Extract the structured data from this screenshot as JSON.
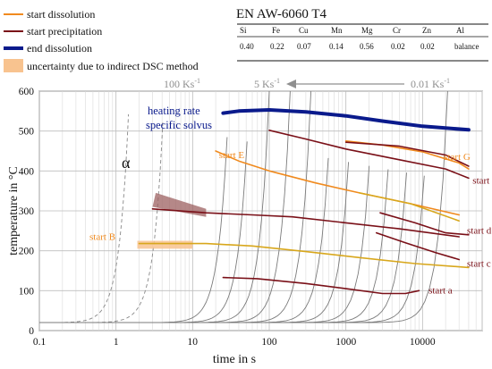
{
  "chart_data": {
    "type": "line",
    "title": "EN AW-6060 T4",
    "xlabel": "time in s",
    "ylabel": "temperature in °C",
    "xscale": "log",
    "xlim": [
      0.1,
      60000
    ],
    "ylim": [
      0,
      600
    ],
    "x_ticks": [
      {
        "value": 0.1,
        "label": "0.1"
      },
      {
        "value": 1,
        "label": "1"
      },
      {
        "value": 10,
        "label": "10"
      },
      {
        "value": 100,
        "label": "100"
      },
      {
        "value": 1000,
        "label": "1000"
      },
      {
        "value": 10000,
        "label": "10000"
      }
    ],
    "y_ticks": [
      0,
      100,
      200,
      300,
      400,
      500,
      600
    ],
    "grid": true,
    "legend": {
      "position": "top-left",
      "entries": [
        {
          "label": "start dissolution",
          "color": "#f08a1e",
          "kind": "line"
        },
        {
          "label": "start precipitation",
          "color": "#7a1018",
          "kind": "line"
        },
        {
          "label": "end dissolution",
          "color": "#0a1a8c",
          "kind": "thick-line"
        },
        {
          "label": "uncertainty due to indirect DSC method",
          "color": "#f8c38f",
          "kind": "box"
        }
      ]
    },
    "composition_table": {
      "headers": [
        "Si",
        "Fe",
        "Cu",
        "Mn",
        "Mg",
        "Cr",
        "Zn",
        "Al"
      ],
      "values": [
        "0.40",
        "0.22",
        "0.07",
        "0.14",
        "0.56",
        "0.02",
        "0.02",
        "balance"
      ]
    },
    "rate_labels": {
      "fast": {
        "text": "100 Ks",
        "exp": "-1"
      },
      "mid": {
        "text": "5 Ks",
        "exp": "-1"
      },
      "slow": {
        "text": "0.01 Ks",
        "exp": "-1"
      }
    },
    "phase_label": "α",
    "solvus_label": [
      "heating rate",
      "specific solvus"
    ],
    "series": [
      {
        "name": "end dissolution",
        "color": "#0a1a8c",
        "width": 4,
        "points": [
          [
            25,
            545
          ],
          [
            40,
            550
          ],
          [
            100,
            553
          ],
          [
            300,
            548
          ],
          [
            1000,
            538
          ],
          [
            3000,
            525
          ],
          [
            10000,
            512
          ],
          [
            40000,
            503
          ]
        ]
      },
      {
        "name": "start E (dissolution)",
        "color": "#f08a1e",
        "width": 1.6,
        "points": [
          [
            20,
            450
          ],
          [
            40,
            425
          ],
          [
            100,
            400
          ],
          [
            400,
            370
          ],
          [
            1500,
            345
          ],
          [
            7000,
            318
          ],
          [
            30000,
            290
          ]
        ]
      },
      {
        "name": "start E (dissolution, yellow)",
        "color": "#d8a71c",
        "width": 1.6,
        "points": [
          [
            1500,
            345
          ],
          [
            7000,
            318
          ],
          [
            30000,
            275
          ]
        ]
      },
      {
        "name": "start G",
        "color": "#f08a1e",
        "width": 1.6,
        "points": [
          [
            1000,
            475
          ],
          [
            3000,
            465
          ],
          [
            10000,
            448
          ],
          [
            30000,
            420
          ],
          [
            40000,
            405
          ]
        ]
      },
      {
        "name": "start f",
        "color": "#7a1018",
        "width": 1.6,
        "points": [
          [
            100,
            502
          ],
          [
            300,
            480
          ],
          [
            1000,
            455
          ],
          [
            5000,
            428
          ],
          [
            20000,
            405
          ],
          [
            40000,
            382
          ]
        ]
      },
      {
        "name": "start f (upper)",
        "color": "#7a1018",
        "width": 1.6,
        "points": [
          [
            1000,
            472
          ],
          [
            5000,
            462
          ],
          [
            20000,
            440
          ],
          [
            40000,
            412
          ]
        ]
      },
      {
        "name": "start d",
        "color": "#7a1018",
        "width": 1.6,
        "points": [
          [
            3,
            305
          ],
          [
            15,
            295
          ],
          [
            60,
            290
          ],
          [
            200,
            285
          ],
          [
            1000,
            270
          ],
          [
            5000,
            255
          ],
          [
            30000,
            235
          ]
        ]
      },
      {
        "name": "start d (right)",
        "color": "#7a1018",
        "width": 1.6,
        "points": [
          [
            2800,
            295
          ],
          [
            8000,
            270
          ],
          [
            20000,
            245
          ],
          [
            40000,
            240
          ]
        ]
      },
      {
        "name": "start B",
        "color": "#d8a71c",
        "width": 1.6,
        "points": [
          [
            2,
            218
          ],
          [
            15,
            218
          ],
          [
            60,
            212
          ],
          [
            300,
            198
          ],
          [
            1500,
            183
          ],
          [
            8000,
            168
          ],
          [
            40000,
            158
          ]
        ]
      },
      {
        "name": "start c",
        "color": "#7a1018",
        "width": 1.6,
        "points": [
          [
            2500,
            245
          ],
          [
            6000,
            220
          ],
          [
            15000,
            195
          ],
          [
            30000,
            178
          ]
        ]
      },
      {
        "name": "start a",
        "color": "#7a1018",
        "width": 1.6,
        "points": [
          [
            25,
            133
          ],
          [
            70,
            130
          ],
          [
            300,
            118
          ],
          [
            1000,
            105
          ],
          [
            3000,
            93
          ],
          [
            6000,
            93
          ],
          [
            9000,
            100
          ]
        ]
      }
    ],
    "annotations": [
      {
        "text": "start E",
        "x": 22,
        "y": 432,
        "color": "#f08a1e"
      },
      {
        "text": "start G",
        "x": 19000,
        "y": 428,
        "color": "#f08a1e"
      },
      {
        "text": "start f",
        "x": 45000,
        "y": 368,
        "color": "#7a1018"
      },
      {
        "text": "start d",
        "x": 38000,
        "y": 243,
        "color": "#7a1018"
      },
      {
        "text": "start c",
        "x": 38000,
        "y": 160,
        "color": "#7a1018"
      },
      {
        "text": "start B",
        "x": 0.45,
        "y": 227,
        "color": "#f08a1e"
      },
      {
        "text": "start a",
        "x": 12000,
        "y": 93,
        "color": "#7a1018"
      }
    ],
    "uncertainty_regions": [
      {
        "color": "#f8c38f",
        "points": [
          [
            1.9,
            225
          ],
          [
            10,
            225
          ],
          [
            10,
            205
          ],
          [
            1.9,
            205
          ]
        ]
      },
      {
        "color": "#9c6060",
        "points": [
          [
            3,
            310
          ],
          [
            3.3,
            345
          ],
          [
            15,
            305
          ],
          [
            15,
            285
          ]
        ]
      }
    ]
  }
}
